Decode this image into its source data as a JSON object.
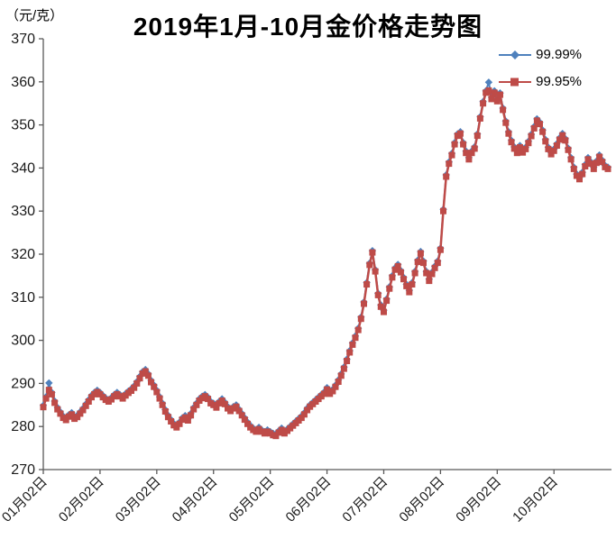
{
  "title": "2019年1月-10月金价格走势图",
  "y_unit_label": "（元/克）",
  "legend": [
    {
      "label": "99.99%",
      "color": "#4F81BD",
      "marker": "diamond"
    },
    {
      "label": "99.95%",
      "color": "#BE4B48",
      "marker": "square"
    }
  ],
  "colors": {
    "axis": "#595959",
    "tick_text": "#1a1a1a",
    "background": "#ffffff"
  },
  "chart_data": {
    "type": "line",
    "title": "2019年1月-10月金价格走势图",
    "xlabel": "",
    "ylabel": "（元/克）",
    "ylim": [
      270,
      370
    ],
    "y_ticks": [
      270,
      280,
      290,
      300,
      310,
      320,
      330,
      340,
      350,
      360,
      370
    ],
    "x_tick_labels": [
      "01月02日",
      "02月02日",
      "03月02日",
      "04月02日",
      "05月02日",
      "06月02日",
      "07月02日",
      "08月02日",
      "09月02日",
      "10月02日"
    ],
    "points_per_month": 20,
    "grid": false,
    "legend_position": "top-right",
    "series": [
      {
        "name": "99.99%",
        "marker": "diamond",
        "color": "#4F81BD",
        "note": "almost entirely hidden behind the 99.95% series; only two diamond tips visible near the early-January peak and the early-September peak",
        "derived": {
          "from": "99.95%",
          "offset": 0.4,
          "overrides": {
            "2": 290.1,
            "157": 359.9
          }
        }
      },
      {
        "name": "99.95%",
        "marker": "square",
        "color": "#BE4B48",
        "values": [
          284.5,
          286.5,
          288.5,
          287.5,
          285.5,
          284.0,
          283.0,
          282.0,
          281.5,
          282.3,
          282.8,
          281.8,
          282.2,
          283.0,
          283.8,
          284.8,
          285.8,
          286.8,
          287.5,
          288.0,
          287.5,
          286.8,
          286.2,
          285.8,
          286.3,
          287.0,
          287.5,
          287.0,
          286.5,
          287.2,
          287.8,
          288.3,
          289.0,
          290.0,
          291.2,
          292.3,
          292.8,
          291.8,
          290.3,
          289.2,
          288.0,
          286.5,
          285.0,
          283.5,
          282.2,
          281.2,
          280.3,
          279.8,
          280.6,
          281.6,
          282.1,
          281.4,
          282.6,
          284.0,
          285.0,
          286.0,
          286.6,
          287.0,
          286.4,
          285.4,
          285.0,
          284.4,
          285.4,
          286.0,
          285.2,
          284.2,
          283.6,
          284.2,
          284.6,
          283.6,
          282.6,
          281.6,
          280.6,
          279.8,
          279.2,
          278.8,
          279.4,
          278.8,
          278.4,
          278.8,
          278.4,
          278.0,
          277.8,
          278.6,
          279.2,
          278.4,
          279.0,
          279.6,
          280.2,
          280.8,
          281.4,
          282.0,
          282.8,
          283.8,
          284.6,
          285.2,
          285.8,
          286.4,
          287.0,
          287.6,
          288.6,
          287.6,
          288.2,
          289.2,
          290.4,
          291.8,
          293.4,
          295.2,
          297.2,
          299.0,
          300.6,
          302.4,
          305.0,
          308.5,
          313.0,
          317.5,
          320.4,
          316.0,
          310.5,
          307.8,
          306.6,
          309.2,
          312.0,
          314.6,
          316.4,
          317.2,
          315.8,
          314.2,
          312.6,
          311.2,
          313.0,
          315.6,
          318.2,
          320.2,
          318.0,
          315.6,
          313.8,
          315.4,
          316.8,
          318.0,
          321.0,
          330.0,
          338.0,
          341.0,
          343.0,
          345.5,
          347.5,
          348.0,
          345.5,
          343.5,
          342.0,
          343.5,
          344.5,
          347.5,
          351.5,
          355.0,
          357.5,
          358.0,
          356.0,
          357.5,
          355.5,
          357.0,
          353.5,
          350.5,
          348.0,
          346.0,
          344.5,
          343.5,
          344.8,
          343.6,
          344.4,
          345.8,
          347.4,
          349.2,
          351.0,
          350.2,
          348.4,
          346.2,
          344.4,
          343.2,
          344.0,
          345.2,
          346.6,
          347.6,
          346.4,
          344.2,
          342.0,
          339.8,
          338.2,
          337.4,
          338.6,
          340.4,
          342.0,
          341.0,
          339.8,
          341.2,
          342.6,
          341.4,
          340.2,
          339.8
        ]
      }
    ]
  }
}
